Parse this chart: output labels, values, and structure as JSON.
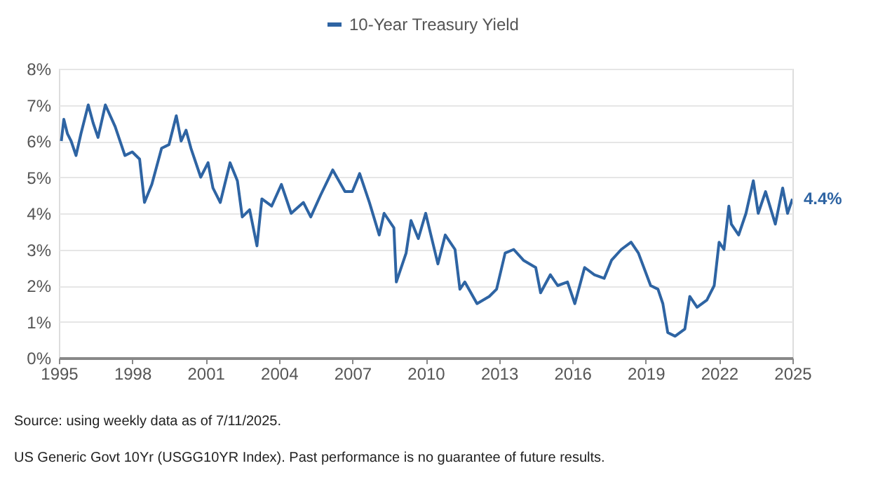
{
  "chart_data": {
    "type": "line",
    "legend": "top",
    "grid": "y",
    "marker": "none",
    "line_style": "solid",
    "xlim": [
      1995,
      2025
    ],
    "xticks": [
      1995,
      1998,
      2001,
      2004,
      2007,
      2010,
      2013,
      2016,
      2019,
      2022,
      2025
    ],
    "ylim": [
      0,
      8
    ],
    "yticks": [
      {
        "value": 0,
        "label": "0%"
      },
      {
        "value": 1,
        "label": "1%"
      },
      {
        "value": 2,
        "label": "2%"
      },
      {
        "value": 3,
        "label": "3%"
      },
      {
        "value": 4,
        "label": "4%"
      },
      {
        "value": 5,
        "label": "5%"
      },
      {
        "value": 6,
        "label": "6%"
      },
      {
        "value": 7,
        "label": "7%"
      },
      {
        "value": 8,
        "label": "8%"
      }
    ],
    "series": [
      {
        "name": "10-Year Treasury Yield",
        "color": "#2e64a3",
        "x": [
          1995.1,
          1995.2,
          1995.35,
          1995.5,
          1995.7,
          1995.9,
          1996.2,
          1996.4,
          1996.6,
          1996.9,
          1997.3,
          1997.7,
          1998.0,
          1998.3,
          1998.5,
          1998.8,
          1999.2,
          1999.5,
          1999.8,
          2000.0,
          2000.2,
          2000.4,
          2000.8,
          2001.1,
          2001.3,
          2001.6,
          2002.0,
          2002.3,
          2002.5,
          2002.8,
          2003.1,
          2003.3,
          2003.7,
          2004.1,
          2004.5,
          2005.0,
          2005.3,
          2005.7,
          2006.2,
          2006.7,
          2007.0,
          2007.3,
          2007.7,
          2008.1,
          2008.3,
          2008.7,
          2008.8,
          2009.2,
          2009.4,
          2009.7,
          2010.0,
          2010.5,
          2010.8,
          2011.2,
          2011.4,
          2011.6,
          2012.1,
          2012.6,
          2012.9,
          2013.25,
          2013.6,
          2014.0,
          2014.5,
          2014.7,
          2015.1,
          2015.4,
          2015.8,
          2016.1,
          2016.5,
          2016.9,
          2017.3,
          2017.6,
          2018.0,
          2018.4,
          2018.7,
          2019.2,
          2019.5,
          2019.7,
          2019.9,
          2020.2,
          2020.6,
          2020.8,
          2021.1,
          2021.5,
          2021.8,
          2022.0,
          2022.2,
          2022.4,
          2022.5,
          2022.8,
          2023.1,
          2023.4,
          2023.6,
          2023.9,
          2024.3,
          2024.6,
          2024.8,
          2025.0
        ],
        "values": [
          6.0,
          6.6,
          6.2,
          6.0,
          5.6,
          6.2,
          7.0,
          6.5,
          6.1,
          7.0,
          6.4,
          5.6,
          5.7,
          5.5,
          4.3,
          4.8,
          5.8,
          5.9,
          6.7,
          6.0,
          6.3,
          5.8,
          5.0,
          5.4,
          4.7,
          4.3,
          5.4,
          4.9,
          3.9,
          4.1,
          3.1,
          4.4,
          4.2,
          4.8,
          4.0,
          4.3,
          3.9,
          4.5,
          5.2,
          4.6,
          4.6,
          5.1,
          4.3,
          3.4,
          4.0,
          3.6,
          2.1,
          2.9,
          3.8,
          3.3,
          4.0,
          2.6,
          3.4,
          3.0,
          1.9,
          2.1,
          1.5,
          1.7,
          1.9,
          2.9,
          3.0,
          2.7,
          2.5,
          1.8,
          2.3,
          2.0,
          2.1,
          1.5,
          2.5,
          2.3,
          2.2,
          2.7,
          3.0,
          3.2,
          2.9,
          2.0,
          1.9,
          1.5,
          0.7,
          0.6,
          0.8,
          1.7,
          1.4,
          1.6,
          2.0,
          3.2,
          3.0,
          4.2,
          3.7,
          3.4,
          4.0,
          4.9,
          4.0,
          4.6,
          3.7,
          4.7,
          4.0,
          4.4
        ]
      }
    ],
    "annotations": [
      {
        "text": "4.4%",
        "x": 2025.0,
        "y": 4.4
      },
      "Source: using weekly data as of 7/11/2025.",
      "US Generic Govt 10Yr (USGG10YR Index). Past performance is no guarantee of future results."
    ]
  }
}
